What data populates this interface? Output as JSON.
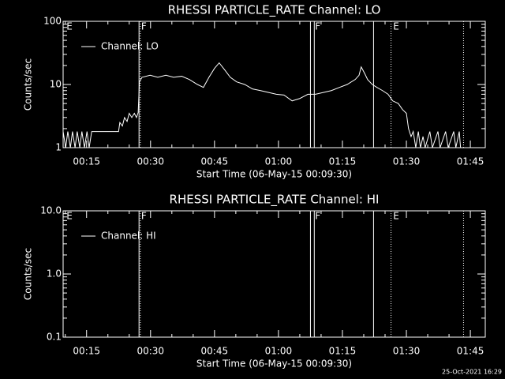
{
  "footer": "25-Oct-2021 16:29",
  "chart_data": [
    {
      "type": "line",
      "title": "RHESSI PARTICLE_RATE Channel: LO",
      "xlabel": "Start Time (06-May-15 00:09:30)",
      "ylabel": "Counts/sec",
      "log_y": true,
      "legend": "upper left",
      "color": "#ffffff",
      "xlim": [
        9.5,
        108.5
      ],
      "xticks": [
        {
          "value": 15,
          "label": "00:15"
        },
        {
          "value": 30,
          "label": "00:30"
        },
        {
          "value": 45,
          "label": "00:45"
        },
        {
          "value": 60,
          "label": "01:00"
        },
        {
          "value": 75,
          "label": "01:15"
        },
        {
          "value": 90,
          "label": "01:30"
        },
        {
          "value": 105,
          "label": "01:45"
        }
      ],
      "ylim": [
        1,
        100
      ],
      "yticks": [
        1,
        10,
        100
      ],
      "vlines": [
        {
          "x": 27.3,
          "style": "solid"
        },
        {
          "x": 27.6,
          "style": "dotted"
        },
        {
          "x": 67.5,
          "style": "solid"
        },
        {
          "x": 68.4,
          "style": "solid"
        },
        {
          "x": 82.3,
          "style": "solid"
        },
        {
          "x": 86.4,
          "style": "dotted"
        },
        {
          "x": 103.4,
          "style": "dotted"
        }
      ],
      "flags": [
        {
          "x": 10.1,
          "label": "E"
        },
        {
          "x": 27.6,
          "label": "F"
        },
        {
          "x": 68.4,
          "label": "F"
        },
        {
          "x": 86.7,
          "label": "E"
        }
      ],
      "series": [
        {
          "name": "Channel: LO",
          "color": "#ffffff",
          "x": [
            9.5,
            10.1,
            10.6,
            11.2,
            11.7,
            12.3,
            12.8,
            13.4,
            13.9,
            14.5,
            15.1,
            15.6,
            16.2,
            22.5,
            22.8,
            23.4,
            23.9,
            24.5,
            25.0,
            25.6,
            26.2,
            26.7,
            27.1,
            27.4,
            28.0,
            29.9,
            31.7,
            33.6,
            35.4,
            37.3,
            39.1,
            41.0,
            42.4,
            43.7,
            45.0,
            46.1,
            47.4,
            48.7,
            50.2,
            52.1,
            53.9,
            55.8,
            57.6,
            59.5,
            61.3,
            63.2,
            65.0,
            66.9,
            68.7,
            70.6,
            72.4,
            74.3,
            76.1,
            78.0,
            78.9,
            79.4,
            80.2,
            80.9,
            82.0,
            83.1,
            84.4,
            85.7,
            86.8,
            88.1,
            89.1,
            90.0,
            90.5,
            91.1,
            91.6,
            92.2,
            92.8,
            93.3,
            93.9,
            94.4,
            95.5,
            96.1,
            97.4,
            97.9,
            99.2,
            99.8,
            101.1,
            101.6,
            102.4,
            102.7
          ],
          "values": [
            1.8,
            1,
            1.8,
            1,
            1.8,
            1,
            1.8,
            1,
            1.8,
            1,
            1.8,
            1,
            1.8,
            1.8,
            2.5,
            2.2,
            3,
            2.6,
            3.5,
            3,
            3.5,
            3,
            3.6,
            11,
            13,
            14,
            13,
            14,
            13,
            13.5,
            12,
            10,
            9,
            13,
            18,
            22,
            17,
            13,
            11,
            10,
            8.5,
            8,
            7.5,
            7,
            6.8,
            5.5,
            6,
            7,
            7,
            7.5,
            8,
            9,
            10,
            12,
            14,
            19,
            15,
            12,
            10,
            9,
            8,
            7,
            5.5,
            5,
            4,
            3.5,
            2,
            1.5,
            1.8,
            1,
            1.8,
            1,
            1.5,
            1,
            1.8,
            1,
            1.8,
            1,
            1.8,
            1,
            1.8,
            1,
            1.8,
            1
          ]
        }
      ]
    },
    {
      "type": "line",
      "title": "RHESSI PARTICLE_RATE Channel: HI",
      "xlabel": "Start Time (06-May-15 00:09:30)",
      "ylabel": "Counts/sec",
      "log_y": true,
      "legend": "upper left",
      "color": "#ffffff",
      "xlim": [
        9.5,
        108.5
      ],
      "xticks": [
        {
          "value": 15,
          "label": "00:15"
        },
        {
          "value": 30,
          "label": "00:30"
        },
        {
          "value": 45,
          "label": "00:45"
        },
        {
          "value": 60,
          "label": "01:00"
        },
        {
          "value": 75,
          "label": "01:15"
        },
        {
          "value": 90,
          "label": "01:30"
        },
        {
          "value": 105,
          "label": "01:45"
        }
      ],
      "ylim": [
        0.1,
        10
      ],
      "yticks": [
        0.1,
        {
          "value": 1,
          "label": "1.0"
        },
        {
          "value": 10,
          "label": "10.0"
        }
      ],
      "vlines": [
        {
          "x": 27.3,
          "style": "solid"
        },
        {
          "x": 27.6,
          "style": "dotted"
        },
        {
          "x": 67.5,
          "style": "solid"
        },
        {
          "x": 68.4,
          "style": "solid"
        },
        {
          "x": 82.3,
          "style": "solid"
        },
        {
          "x": 86.4,
          "style": "dotted"
        },
        {
          "x": 103.4,
          "style": "dotted"
        }
      ],
      "flags": [
        {
          "x": 10.1,
          "label": "E"
        },
        {
          "x": 27.6,
          "label": "F"
        },
        {
          "x": 68.4,
          "label": "F"
        },
        {
          "x": 86.7,
          "label": "E"
        }
      ],
      "series": [
        {
          "name": "Channel: HI",
          "color": "#ffffff",
          "x": [],
          "values": []
        }
      ]
    }
  ]
}
